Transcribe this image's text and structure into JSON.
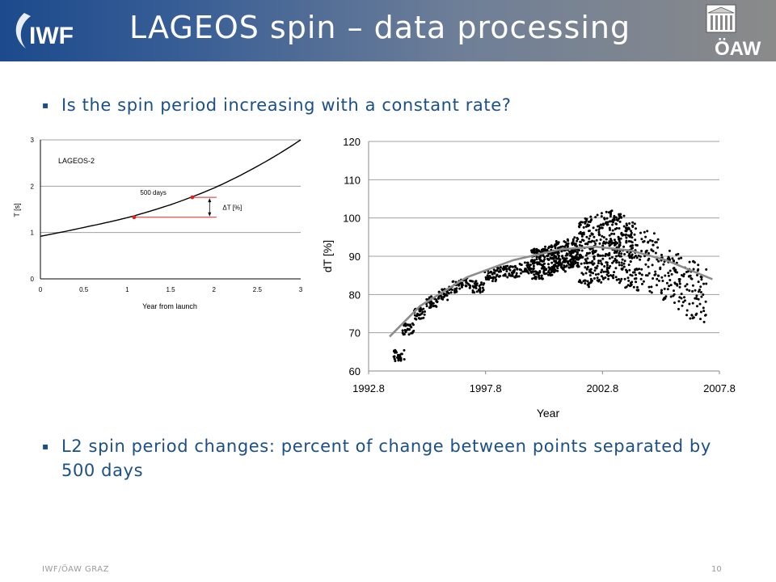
{
  "header": {
    "title": "LAGEOS spin – data processing",
    "logo_left_text": "IWF",
    "logo_right_text": "ÖAW",
    "colors": {
      "gradient_start": "#1c4a8c",
      "gradient_end": "#8a8a8a",
      "title": "#ffffff"
    }
  },
  "bullets": [
    {
      "marker": "▪",
      "text": "Is the spin period increasing with a constant rate?"
    },
    {
      "marker": "▪",
      "text": "L2 spin period changes: percent of change between points separated by 500 days"
    }
  ],
  "footer": {
    "left": "IWF/ÖAW GRAZ",
    "right": "10"
  },
  "accent_color": "#1b4f8a",
  "chart_data": [
    {
      "type": "line",
      "annotation_label": "LAGEOS-2",
      "xlabel": "Year from launch",
      "ylabel": "T [s]",
      "xlim": [
        0,
        3
      ],
      "ylim": [
        0,
        3
      ],
      "x_ticks": [
        "0",
        "0.5",
        "1",
        "1.5",
        "2",
        "2.5",
        "3"
      ],
      "y_ticks": [
        "0",
        "1",
        "2",
        "3"
      ],
      "grid": "horizontal",
      "series": [
        {
          "x": [
            0,
            0.5,
            1,
            1.5,
            2,
            2.5,
            3
          ],
          "values": [
            0.92,
            1.11,
            1.32,
            1.6,
            1.96,
            2.43,
            3.0
          ]
        }
      ],
      "markers": [
        {
          "x": 1.08,
          "y": 1.33
        },
        {
          "x": 1.75,
          "y": 1.76
        }
      ],
      "annotations": {
        "interval": "500 days",
        "delta": "ΔT [%]"
      },
      "colors": {
        "curve": "#000000",
        "markers": "#e02020",
        "grid": "#a0a0a0"
      }
    },
    {
      "type": "scatter",
      "xlabel": "Year",
      "ylabel": "dT [%]",
      "xlim": [
        1992.8,
        2007.8
      ],
      "ylim": [
        60,
        120
      ],
      "x_ticks": [
        "1992.8",
        "1997.8",
        "2002.8",
        "2007.8"
      ],
      "y_ticks": [
        "60",
        "70",
        "80",
        "90",
        "100",
        "110",
        "120"
      ],
      "grid": "horizontal",
      "series": [
        {
          "x": [
            1994.1,
            1994.5,
            1995.0,
            1995.5,
            1996.0,
            1996.5,
            1997.0,
            1997.5,
            1998.0,
            1998.5,
            1999.0,
            1999.5,
            2000.0,
            2000.5,
            2001.0,
            2001.5,
            2002.0,
            2002.5,
            2003.0,
            2003.5,
            2004.0,
            2004.5,
            2005.0,
            2005.5,
            2006.0,
            2006.5,
            2007.0
          ],
          "values": [
            64,
            71,
            75,
            78,
            80,
            82,
            83,
            82,
            85,
            86,
            86,
            87,
            88,
            89,
            90,
            91,
            91,
            92,
            93,
            92,
            90,
            89,
            88,
            86,
            83,
            81,
            80
          ]
        }
      ],
      "trend": {
        "x": [
          1993.7,
          1995,
          1997,
          1999,
          2001,
          2002.5,
          2004,
          2005.5,
          2007.5
        ],
        "values": [
          69,
          77,
          84.5,
          89,
          91.8,
          92.5,
          91.5,
          89,
          84
        ]
      },
      "colors": {
        "points": "#000000",
        "trend": "#8c8c8c",
        "grid": "#a0a0a0"
      }
    }
  ]
}
